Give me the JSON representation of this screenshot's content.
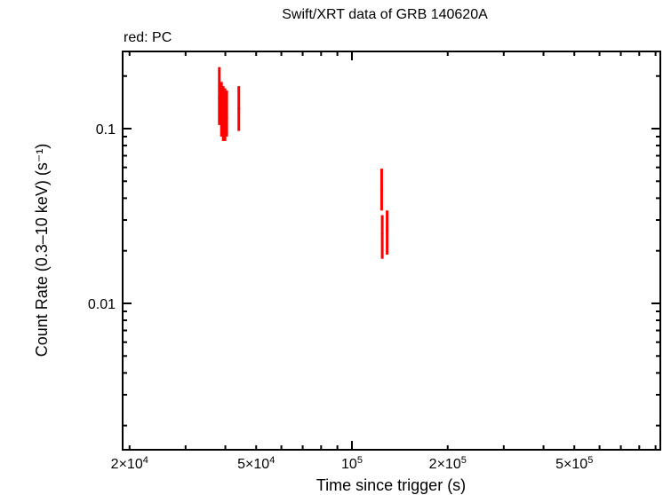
{
  "chart": {
    "title": "Swift/XRT data of GRB 140620A",
    "legend_note": "red: PC",
    "xlabel": "Time since trigger (s)",
    "ylabel": "Count Rate (0.3–10 keV) (s⁻¹)"
  },
  "chart_data": {
    "type": "scatter",
    "title": "Swift/XRT data of GRB 140620A",
    "xlabel": "Time since trigger (s)",
    "ylabel": "Count Rate (0.3-10 keV) (s^-1)",
    "xscale": "log",
    "yscale": "log",
    "xlim": [
      19000,
      880000
    ],
    "ylim": [
      0.0017,
      0.28
    ],
    "x_tick_labels": [
      "2×10^4",
      "5×10^4",
      "10^5",
      "2×10^5",
      "5×10^5"
    ],
    "y_tick_labels": [
      "0.01",
      "0.1"
    ],
    "grid": false,
    "legend": "red: PC (top-left annotation)",
    "series": [
      {
        "name": "PC",
        "color": "#ff0000",
        "points": [
          {
            "t": 38300,
            "rate": 0.15,
            "rate_lo": 0.105,
            "rate_hi": 0.225
          },
          {
            "t": 38900,
            "rate": 0.13,
            "rate_lo": 0.09,
            "rate_hi": 0.185
          },
          {
            "t": 39400,
            "rate": 0.125,
            "rate_lo": 0.085,
            "rate_hi": 0.175
          },
          {
            "t": 39900,
            "rate": 0.12,
            "rate_lo": 0.085,
            "rate_hi": 0.17
          },
          {
            "t": 40400,
            "rate": 0.115,
            "rate_lo": 0.09,
            "rate_hi": 0.165
          },
          {
            "t": 44100,
            "rate": 0.13,
            "rate_lo": 0.097,
            "rate_hi": 0.175
          },
          {
            "t": 124000,
            "rate": 0.045,
            "rate_lo": 0.034,
            "rate_hi": 0.059
          },
          {
            "t": 124500,
            "rate": 0.025,
            "rate_lo": 0.018,
            "rate_hi": 0.032
          },
          {
            "t": 129000,
            "rate": 0.026,
            "rate_lo": 0.019,
            "rate_hi": 0.034
          }
        ]
      }
    ]
  }
}
